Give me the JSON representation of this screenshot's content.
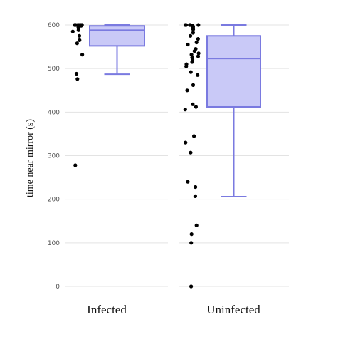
{
  "chart_data": {
    "type": "box",
    "ylabel": "time near mirror (s)",
    "ylim": [
      0,
      600
    ],
    "yticks": [
      0,
      100,
      200,
      300,
      400,
      500,
      600
    ],
    "grid": true,
    "groups": [
      {
        "name": "Infected",
        "box": {
          "min": 487,
          "q1": 552,
          "median": 588,
          "q3": 598,
          "max": 600
        },
        "points": [
          600,
          600,
          600,
          600,
          600,
          600,
          598,
          595,
          592,
          588,
          585,
          575,
          565,
          558,
          532,
          488,
          476,
          278
        ]
      },
      {
        "name": "Uninfected",
        "box": {
          "min": 206,
          "q1": 412,
          "median": 523,
          "q3": 575,
          "max": 600
        },
        "points": [
          600,
          600,
          600,
          600,
          600,
          598,
          596,
          594,
          590,
          582,
          575,
          568,
          560,
          555,
          545,
          540,
          535,
          532,
          528,
          525,
          520,
          515,
          510,
          505,
          492,
          485,
          462,
          450,
          418,
          412,
          406,
          345,
          330,
          307,
          240,
          228,
          207,
          140,
          120,
          100,
          0
        ]
      }
    ]
  }
}
